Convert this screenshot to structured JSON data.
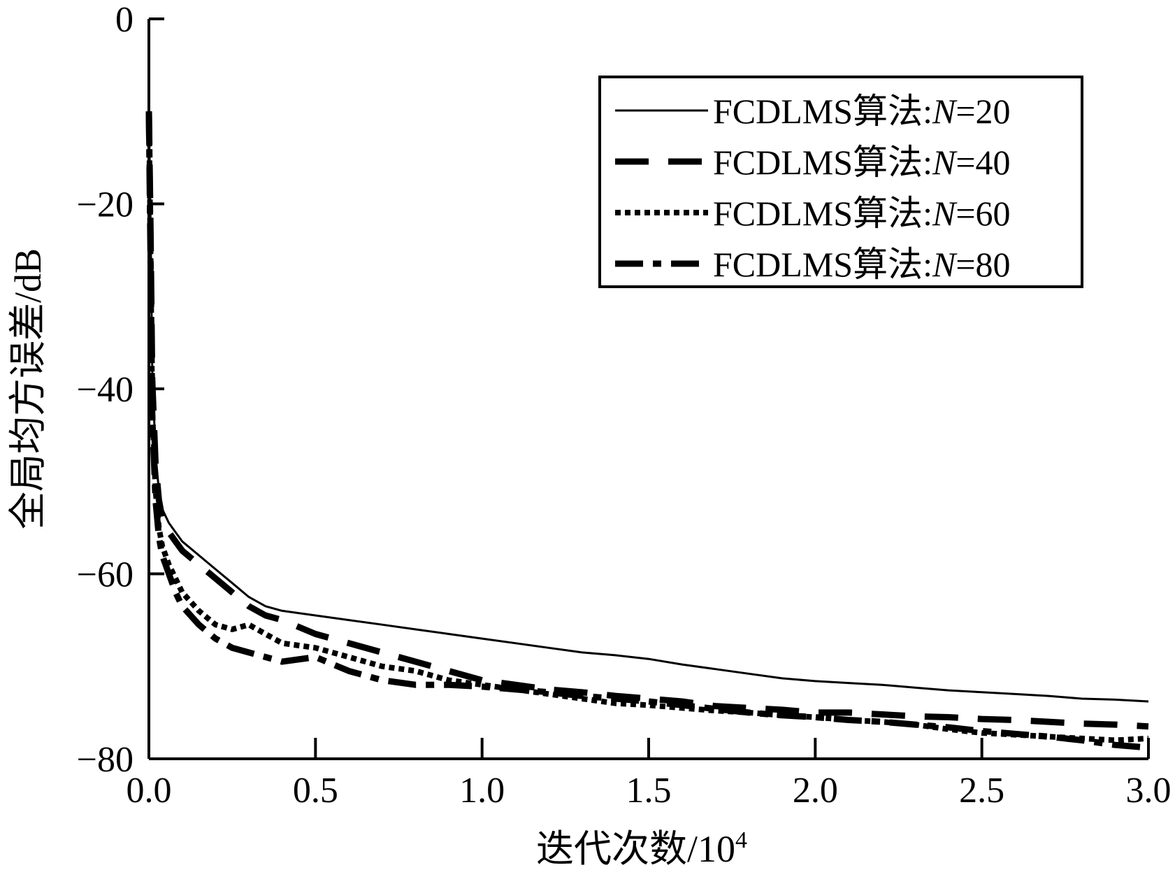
{
  "chart_data": {
    "type": "line",
    "title": "",
    "xlabel": "迭代次数/10",
    "xlabel_sup": "4",
    "ylabel": "全局均方误差/dB",
    "xlim": [
      0.0,
      3.0
    ],
    "ylim": [
      -80,
      0
    ],
    "x_ticks": [
      "0.0",
      "0.5",
      "1.0",
      "1.5",
      "2.0",
      "2.5",
      "3.0"
    ],
    "y_ticks": [
      "0",
      "−20",
      "−40",
      "−60",
      "−80"
    ],
    "grid": false,
    "legend_position": "top-right",
    "series": [
      {
        "name": "FCDLMS算法:N=20",
        "name_prefix": "FCDLMS算法:",
        "name_var": "N",
        "name_suffix": "=20",
        "style": "solid",
        "x": [
          0.0,
          0.005,
          0.01,
          0.02,
          0.03,
          0.04,
          0.06,
          0.08,
          0.1,
          0.15,
          0.2,
          0.25,
          0.3,
          0.35,
          0.4,
          0.5,
          0.6,
          0.7,
          0.8,
          0.9,
          1.0,
          1.1,
          1.2,
          1.3,
          1.4,
          1.5,
          1.6,
          1.7,
          1.8,
          1.9,
          2.0,
          2.1,
          2.2,
          2.3,
          2.4,
          2.5,
          2.6,
          2.7,
          2.8,
          2.9,
          3.0
        ],
        "y": [
          -10,
          -22,
          -38,
          -47,
          -51,
          -53,
          -54.5,
          -55.5,
          -56.5,
          -58,
          -59.5,
          -61,
          -62.5,
          -63.5,
          -64,
          -64.5,
          -65,
          -65.5,
          -66,
          -66.5,
          -67,
          -67.5,
          -68,
          -68.5,
          -68.8,
          -69.2,
          -69.8,
          -70.3,
          -70.8,
          -71.3,
          -71.6,
          -71.8,
          -72,
          -72.3,
          -72.6,
          -72.8,
          -73,
          -73.2,
          -73.5,
          -73.6,
          -73.8
        ]
      },
      {
        "name": "FCDLMS算法:N=40",
        "name_prefix": "FCDLMS算法:",
        "name_var": "N",
        "name_suffix": "=40",
        "style": "dash",
        "x": [
          0.0,
          0.005,
          0.01,
          0.02,
          0.03,
          0.04,
          0.06,
          0.08,
          0.1,
          0.15,
          0.2,
          0.25,
          0.3,
          0.35,
          0.4,
          0.5,
          0.6,
          0.7,
          0.8,
          0.9,
          1.0,
          1.1,
          1.2,
          1.3,
          1.4,
          1.5,
          1.6,
          1.7,
          1.8,
          1.9,
          2.0,
          2.1,
          2.2,
          2.3,
          2.4,
          2.5,
          2.6,
          2.7,
          2.8,
          2.9,
          3.0
        ],
        "y": [
          -10,
          -23,
          -39,
          -48,
          -52,
          -54,
          -55.5,
          -56.5,
          -57.5,
          -59,
          -60.5,
          -62,
          -63.5,
          -64.5,
          -65,
          -66.5,
          -67.5,
          -68.5,
          -69.5,
          -70.5,
          -71.5,
          -72,
          -72.5,
          -72.8,
          -73.2,
          -73.5,
          -73.8,
          -74.3,
          -74.5,
          -74.7,
          -75,
          -75,
          -75.2,
          -75.4,
          -75.5,
          -75.7,
          -75.8,
          -76,
          -76.2,
          -76.3,
          -76.5
        ]
      },
      {
        "name": "FCDLMS算法:N=60",
        "name_prefix": "FCDLMS算法:",
        "name_var": "N",
        "name_suffix": "=60",
        "style": "dot",
        "x": [
          0.0,
          0.005,
          0.01,
          0.02,
          0.03,
          0.04,
          0.06,
          0.08,
          0.1,
          0.15,
          0.2,
          0.25,
          0.3,
          0.35,
          0.4,
          0.5,
          0.6,
          0.7,
          0.8,
          0.9,
          1.0,
          1.1,
          1.2,
          1.3,
          1.4,
          1.5,
          1.6,
          1.7,
          1.8,
          1.9,
          2.0,
          2.1,
          2.2,
          2.3,
          2.4,
          2.5,
          2.6,
          2.7,
          2.8,
          2.9,
          3.0
        ],
        "y": [
          -10,
          -25,
          -42,
          -51,
          -55,
          -57,
          -59,
          -60.5,
          -62,
          -64,
          -65.5,
          -66,
          -65.5,
          -66.5,
          -67.5,
          -68,
          -69,
          -70,
          -70.5,
          -71.5,
          -72,
          -72.5,
          -73,
          -73.5,
          -74,
          -74.2,
          -74.5,
          -74.8,
          -75,
          -75.3,
          -75.5,
          -75.8,
          -76,
          -76.3,
          -76.8,
          -77.2,
          -77.4,
          -77.6,
          -77.8,
          -78,
          -77.8
        ]
      },
      {
        "name": "FCDLMS算法:N=80",
        "name_prefix": "FCDLMS算法:",
        "name_var": "N",
        "name_suffix": "=80",
        "style": "dashdot",
        "x": [
          0.0,
          0.005,
          0.01,
          0.02,
          0.03,
          0.04,
          0.06,
          0.08,
          0.1,
          0.15,
          0.2,
          0.25,
          0.3,
          0.35,
          0.4,
          0.5,
          0.6,
          0.7,
          0.8,
          0.9,
          1.0,
          1.1,
          1.2,
          1.3,
          1.4,
          1.5,
          1.6,
          1.7,
          1.8,
          1.9,
          2.0,
          2.1,
          2.2,
          2.3,
          2.4,
          2.5,
          2.6,
          2.7,
          2.8,
          2.9,
          3.0
        ],
        "y": [
          -10,
          -26,
          -43,
          -52,
          -56,
          -58,
          -60,
          -62,
          -63.5,
          -65.5,
          -67,
          -68,
          -68.5,
          -69,
          -69.5,
          -69,
          -70.5,
          -71.5,
          -72,
          -72,
          -72.2,
          -72.5,
          -72.8,
          -73.2,
          -73.5,
          -73.8,
          -74.2,
          -74.6,
          -75,
          -75.3,
          -75.5,
          -75.8,
          -76,
          -76.3,
          -76.6,
          -77,
          -77.3,
          -77.6,
          -78,
          -78.5,
          -78.8
        ]
      }
    ]
  }
}
